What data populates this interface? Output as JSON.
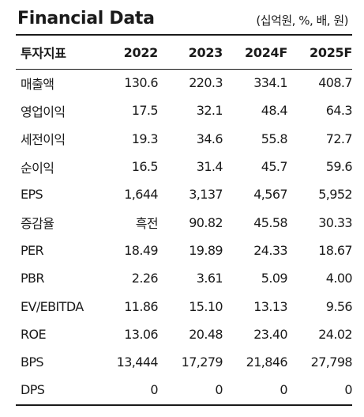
{
  "header": {
    "title": "Financial Data",
    "unit": "(십억원, %, 배, 원)"
  },
  "table": {
    "columns": [
      "투자지표",
      "2022",
      "2023",
      "2024F",
      "2025F"
    ],
    "rows": [
      {
        "label": "매출액",
        "values": [
          "130.6",
          "220.3",
          "334.1",
          "408.7"
        ]
      },
      {
        "label": "영업이익",
        "values": [
          "17.5",
          "32.1",
          "48.4",
          "64.3"
        ]
      },
      {
        "label": "세전이익",
        "values": [
          "19.3",
          "34.6",
          "55.8",
          "72.7"
        ]
      },
      {
        "label": "순이익",
        "values": [
          "16.5",
          "31.4",
          "45.7",
          "59.6"
        ]
      },
      {
        "label": "EPS",
        "values": [
          "1,644",
          "3,137",
          "4,567",
          "5,952"
        ]
      },
      {
        "label": "증감율",
        "values": [
          "흑전",
          "90.82",
          "45.58",
          "30.33"
        ]
      },
      {
        "label": "PER",
        "values": [
          "18.49",
          "19.89",
          "24.33",
          "18.67"
        ]
      },
      {
        "label": "PBR",
        "values": [
          "2.26",
          "3.61",
          "5.09",
          "4.00"
        ]
      },
      {
        "label": "EV/EBITDA",
        "values": [
          "11.86",
          "15.10",
          "13.13",
          "9.56"
        ]
      },
      {
        "label": "ROE",
        "values": [
          "13.06",
          "20.48",
          "23.40",
          "24.02"
        ]
      },
      {
        "label": "BPS",
        "values": [
          "13,444",
          "17,279",
          "21,846",
          "27,798"
        ]
      },
      {
        "label": "DPS",
        "values": [
          "0",
          "0",
          "0",
          "0"
        ]
      }
    ]
  }
}
